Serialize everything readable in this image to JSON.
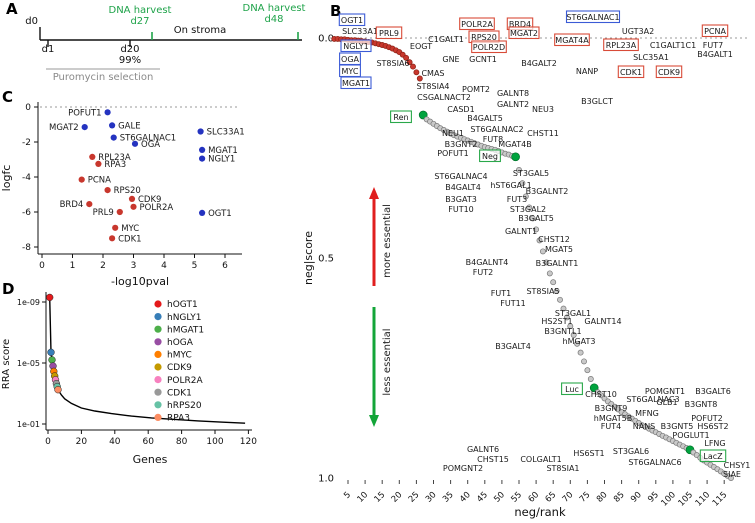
{
  "panel_letters": {
    "a": "A",
    "b": "B",
    "c": "C",
    "d": "D"
  },
  "timeline": {
    "d0": "d0",
    "d1": "d1",
    "d20": "d20",
    "pct": "99%",
    "on_stroma": "On stroma",
    "puromycin": "Puromycin selection",
    "harvests": [
      {
        "line1": "DNA harvest",
        "line2": "d27"
      },
      {
        "line1": "DNA harvest",
        "line2": "d48"
      }
    ],
    "green": "#1fa34a"
  },
  "colors": {
    "red_pt": "#c8372d",
    "blue_pt": "#2433c0",
    "gray_pt": "#c9c9c9",
    "gray_stroke": "#777777",
    "green_pt": "#00a33e",
    "box_blue": "#3b5bd6",
    "box_red": "#d84b38",
    "box_green": "#2aa84a",
    "dotted": "#999999"
  },
  "chart_data": [
    {
      "id": "B",
      "type": "scatter",
      "xlabel": "neg/rank",
      "ylabel": "neg|score",
      "xlim": [
        1,
        117
      ],
      "ylim": [
        0,
        1
      ],
      "xticks": [
        5,
        10,
        15,
        20,
        25,
        30,
        35,
        40,
        45,
        50,
        55,
        60,
        65,
        70,
        75,
        80,
        85,
        90,
        95,
        100,
        105,
        110,
        115
      ],
      "yticks": [
        "0.0",
        "0.5",
        "1.0"
      ],
      "ytick_vals": [
        0,
        0.5,
        1
      ],
      "annotations": {
        "more": "more essential",
        "less": "less essential"
      },
      "points": {
        "red_until": 26,
        "green_ranks": [
          27,
          54,
          77,
          105
        ],
        "scores": [
          0.002,
          0.002,
          0.003,
          0.003,
          0.004,
          0.005,
          0.005,
          0.006,
          0.007,
          0.008,
          0.009,
          0.01,
          0.012,
          0.014,
          0.016,
          0.018,
          0.021,
          0.024,
          0.028,
          0.032,
          0.038,
          0.045,
          0.055,
          0.065,
          0.078,
          0.092,
          0.175,
          0.185,
          0.19,
          0.195,
          0.2,
          0.205,
          0.209,
          0.213,
          0.217,
          0.221,
          0.224,
          0.227,
          0.23,
          0.233,
          0.236,
          0.239,
          0.242,
          0.245,
          0.248,
          0.25,
          0.252,
          0.254,
          0.257,
          0.26,
          0.263,
          0.265,
          0.268,
          0.27,
          0.3,
          0.33,
          0.36,
          0.385,
          0.41,
          0.435,
          0.46,
          0.485,
          0.51,
          0.535,
          0.555,
          0.575,
          0.595,
          0.615,
          0.635,
          0.655,
          0.675,
          0.695,
          0.715,
          0.735,
          0.755,
          0.775,
          0.795,
          0.805,
          0.812,
          0.819,
          0.826,
          0.832,
          0.838,
          0.844,
          0.85,
          0.855,
          0.86,
          0.865,
          0.87,
          0.875,
          0.88,
          0.884,
          0.888,
          0.892,
          0.896,
          0.9,
          0.904,
          0.908,
          0.912,
          0.916,
          0.92,
          0.924,
          0.928,
          0.932,
          0.936,
          0.942,
          0.948,
          0.954,
          0.96,
          0.965,
          0.97,
          0.975,
          0.98,
          0.985,
          0.99,
          0.995,
          1.0
        ]
      },
      "labels": [
        [
          "OGT1",
          52,
          20,
          "blue"
        ],
        [
          "SLC33A1",
          60,
          31,
          null
        ],
        [
          "NGLY1",
          56,
          46,
          "blue"
        ],
        [
          "OGA",
          50,
          59,
          "blue"
        ],
        [
          "MYC",
          50,
          71,
          "blue"
        ],
        [
          "MGAT1",
          56,
          83,
          "blue"
        ],
        [
          "PRL9",
          89,
          33,
          "red"
        ],
        [
          "C1GALT1",
          146,
          39,
          null
        ],
        [
          "POLR2A",
          177,
          24,
          "red"
        ],
        [
          "RPS20",
          184,
          37,
          "red"
        ],
        [
          "BRD4",
          220,
          24,
          "red"
        ],
        [
          "MGAT2",
          224,
          33,
          "red"
        ],
        [
          "ST6GALNAC1",
          293,
          17,
          "blue"
        ],
        [
          "MGAT4A",
          272,
          40,
          "red"
        ],
        [
          "POLR2D",
          189,
          47,
          "red"
        ],
        [
          "EOGT",
          121,
          46,
          null
        ],
        [
          "UGT3A2",
          338,
          31,
          null
        ],
        [
          "PCNA",
          415,
          31,
          "red"
        ],
        [
          "RPL23A",
          321,
          45,
          "red"
        ],
        [
          "C1GALT1C1",
          373,
          45,
          null
        ],
        [
          "FUT7",
          413,
          45,
          null
        ],
        [
          "B4GALT1",
          415,
          54,
          null
        ],
        [
          "SLC35A1",
          351,
          57,
          null
        ],
        [
          "ST8SIA6",
          93,
          63,
          null
        ],
        [
          "GNE",
          151,
          59,
          null
        ],
        [
          "GCNT1",
          183,
          59,
          null
        ],
        [
          "B4GALT2",
          239,
          63,
          null
        ],
        [
          "NANP",
          287,
          71,
          null
        ],
        [
          "CDK1",
          331,
          72,
          "red"
        ],
        [
          "CDK9",
          369,
          72,
          "red"
        ],
        [
          "CMAS",
          133,
          73,
          null
        ],
        [
          "ST8SIA4",
          133,
          86,
          null
        ],
        [
          "CSGALNACT2",
          144,
          97,
          null
        ],
        [
          "POMT2",
          176,
          89,
          null
        ],
        [
          "GALNT8",
          213,
          93,
          null
        ],
        [
          "CASD1",
          161,
          109,
          null
        ],
        [
          "GALNT2",
          213,
          104,
          null
        ],
        [
          "NEU3",
          243,
          109,
          null
        ],
        [
          "B3GLCT",
          297,
          101,
          null
        ],
        [
          "Ren",
          101,
          117,
          "green"
        ],
        [
          "B4GALT5",
          185,
          118,
          null
        ],
        [
          "ST6GALNAC2",
          197,
          129,
          null
        ],
        [
          "NEU1",
          153,
          133,
          null
        ],
        [
          "FUT8",
          193,
          139,
          null
        ],
        [
          "CHST11",
          243,
          133,
          null
        ],
        [
          "B3GNT2",
          161,
          144,
          null
        ],
        [
          "MGAT4B",
          215,
          144,
          null
        ],
        [
          "POFUT1",
          153,
          153,
          null
        ],
        [
          "Neg",
          190,
          156,
          "green"
        ],
        [
          "ST6GALNAC4",
          161,
          176,
          null
        ],
        [
          "ST3GAL5",
          231,
          173,
          null
        ],
        [
          "B4GALT4",
          163,
          187,
          null
        ],
        [
          "hST6GAL1",
          211,
          185,
          null
        ],
        [
          "B3GALNT2",
          247,
          191,
          null
        ],
        [
          "B3GAT3",
          161,
          199,
          null
        ],
        [
          "FUT3",
          217,
          199,
          null
        ],
        [
          "FUT10",
          161,
          209,
          null
        ],
        [
          "ST3GAL2",
          228,
          209,
          null
        ],
        [
          "B3GALT5",
          236,
          218,
          null
        ],
        [
          "GALNT1",
          221,
          231,
          null
        ],
        [
          "CHST12",
          254,
          239,
          null
        ],
        [
          "MGAT5",
          259,
          249,
          null
        ],
        [
          "B4GALNT4",
          187,
          262,
          null
        ],
        [
          "FUT2",
          183,
          272,
          null
        ],
        [
          "B3GALNT1",
          257,
          263,
          null
        ],
        [
          "FUT1",
          201,
          293,
          null
        ],
        [
          "ST8SIA5",
          243,
          291,
          null
        ],
        [
          "FUT11",
          213,
          303,
          null
        ],
        [
          "ST3GAL1",
          273,
          313,
          null
        ],
        [
          "HS2ST1",
          257,
          321,
          null
        ],
        [
          "GALNT14",
          303,
          321,
          null
        ],
        [
          "B3GNTL1",
          263,
          331,
          null
        ],
        [
          "hMGAT3",
          279,
          341,
          null
        ],
        [
          "B3GALT4",
          213,
          346,
          null
        ],
        [
          "Luc",
          272,
          389,
          "green"
        ],
        [
          "CHST10",
          301,
          394,
          null
        ],
        [
          "ST6GALNAC3",
          353,
          399,
          null
        ],
        [
          "POMGNT1",
          365,
          391,
          null
        ],
        [
          "B3GALT6",
          413,
          391,
          null
        ],
        [
          "B3GNT9",
          311,
          408,
          null
        ],
        [
          "GLB1",
          367,
          402,
          null
        ],
        [
          "B3GNT8",
          401,
          404,
          null
        ],
        [
          "hMGAT5B",
          313,
          418,
          null
        ],
        [
          "MFNG",
          347,
          413,
          null
        ],
        [
          "POFUT2",
          407,
          418,
          null
        ],
        [
          "FUT4",
          311,
          426,
          null
        ],
        [
          "NANS",
          344,
          426,
          null
        ],
        [
          "B3GNT5",
          377,
          426,
          null
        ],
        [
          "HS6ST2",
          413,
          426,
          null
        ],
        [
          "POGLUT1",
          391,
          435,
          null
        ],
        [
          "LFNG",
          415,
          443,
          null
        ],
        [
          "GALNT6",
          183,
          449,
          null
        ],
        [
          "CHST15",
          193,
          459,
          null
        ],
        [
          "COLGALT1",
          241,
          459,
          null
        ],
        [
          "HS6ST1",
          289,
          453,
          null
        ],
        [
          "ST3GAL6",
          331,
          451,
          null
        ],
        [
          "POMGNT2",
          163,
          468,
          null
        ],
        [
          "ST8SIA1",
          263,
          468,
          null
        ],
        [
          "ST6GALNAC6",
          355,
          462,
          null
        ],
        [
          "LacZ",
          413,
          456,
          "green"
        ],
        [
          "CHSY1",
          437,
          465,
          null
        ],
        [
          "SIAE",
          432,
          474,
          null
        ]
      ]
    },
    {
      "id": "C",
      "type": "scatter",
      "xlabel": "-log10pval",
      "ylabel": "logfc",
      "xlim": [
        0,
        6
      ],
      "ylim": [
        -8,
        0
      ],
      "xticks": [
        0,
        1,
        2,
        3,
        4,
        5,
        6
      ],
      "yticks": [
        0,
        -2,
        -4,
        -6,
        -8
      ],
      "points": [
        [
          "POFUT1",
          2.15,
          -0.3,
          "blue",
          "l"
        ],
        [
          "MGAT2",
          1.4,
          -1.15,
          "blue",
          "l"
        ],
        [
          "GALE",
          2.3,
          -1.05,
          "blue",
          "r"
        ],
        [
          "ST6GALNAC1",
          2.35,
          -1.75,
          "blue",
          "r"
        ],
        [
          "SLC33A1",
          5.2,
          -1.4,
          "blue",
          "r"
        ],
        [
          "OGA",
          3.05,
          -2.1,
          "blue",
          "r"
        ],
        [
          "MGAT1",
          5.25,
          -2.45,
          "blue",
          "r"
        ],
        [
          "NGLY1",
          5.25,
          -2.95,
          "blue",
          "r"
        ],
        [
          "RPL23A",
          1.65,
          -2.85,
          "red",
          "r"
        ],
        [
          "RPA3",
          1.85,
          -3.25,
          "red",
          "r"
        ],
        [
          "PCNA",
          1.3,
          -4.15,
          "red",
          "r"
        ],
        [
          "RPS20",
          2.15,
          -4.75,
          "red",
          "r"
        ],
        [
          "BRD4",
          1.55,
          -5.55,
          "red",
          "l"
        ],
        [
          "CDK9",
          2.95,
          -5.25,
          "red",
          "r"
        ],
        [
          "POLR2A",
          3.0,
          -5.7,
          "red",
          "r"
        ],
        [
          "PRL9",
          2.55,
          -6.0,
          "red",
          "l"
        ],
        [
          "OGT1",
          5.25,
          -6.05,
          "blue",
          "r"
        ],
        [
          "MYC",
          2.4,
          -6.9,
          "red",
          "r"
        ],
        [
          "CDK1",
          2.3,
          -7.5,
          "red",
          "r"
        ]
      ]
    },
    {
      "id": "D",
      "type": "line",
      "xlabel": "Genes",
      "ylabel": "RRA score",
      "xticks": [
        0,
        20,
        40,
        60,
        80,
        100,
        120
      ],
      "yticks": [
        {
          "label": "1e-09",
          "log": -9
        },
        {
          "label": "1e-05",
          "log": -5
        },
        {
          "label": "1e-01",
          "log": -1
        }
      ],
      "curve": [
        [
          1,
          -9.3
        ],
        [
          1.8,
          -5.7
        ],
        [
          2.4,
          -5.2
        ],
        [
          3,
          -4.8
        ],
        [
          3.5,
          -4.45
        ],
        [
          4,
          -4.15
        ],
        [
          4.5,
          -3.9
        ],
        [
          5,
          -3.65
        ],
        [
          5.5,
          -3.45
        ],
        [
          6,
          -3.25
        ],
        [
          8,
          -2.9
        ],
        [
          10,
          -2.65
        ],
        [
          14,
          -2.35
        ],
        [
          20,
          -2.05
        ],
        [
          28,
          -1.85
        ],
        [
          38,
          -1.68
        ],
        [
          50,
          -1.52
        ],
        [
          62,
          -1.4
        ],
        [
          76,
          -1.3
        ],
        [
          90,
          -1.2
        ],
        [
          105,
          -1.12
        ],
        [
          118,
          -1.05
        ]
      ],
      "genes": [
        {
          "label": "hOGT1",
          "color": "#e41a1c",
          "x": 1,
          "log": -9.3
        },
        {
          "label": "hNGLY1",
          "color": "#377eb8",
          "x": 1.8,
          "log": -5.7
        },
        {
          "label": "hMGAT1",
          "color": "#4daf4a",
          "x": 2.4,
          "log": -5.2
        },
        {
          "label": "hOGA",
          "color": "#984ea3",
          "x": 3,
          "log": -4.8
        },
        {
          "label": "hMYC",
          "color": "#ff7f00",
          "x": 3.5,
          "log": -4.45
        },
        {
          "label": "CDK9",
          "color": "#c49a00",
          "x": 4,
          "log": -4.15
        },
        {
          "label": "POLR2A",
          "color": "#f781bf",
          "x": 4.5,
          "log": -3.9
        },
        {
          "label": "CDK1",
          "color": "#999999",
          "x": 5,
          "log": -3.65
        },
        {
          "label": "hRPS20",
          "color": "#66c2a5",
          "x": 5.5,
          "log": -3.45
        },
        {
          "label": "RPA3",
          "color": "#fc8d62",
          "x": 6,
          "log": -3.25
        }
      ]
    }
  ]
}
